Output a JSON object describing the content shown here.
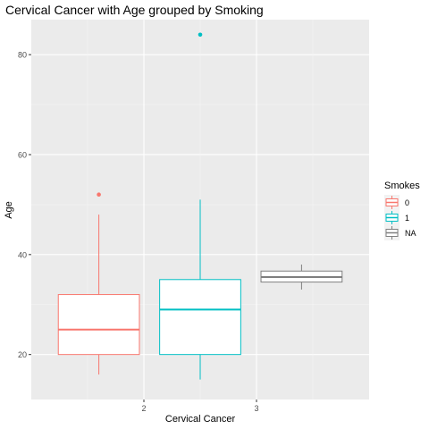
{
  "chart_data": {
    "type": "boxplot",
    "title": "Cervical Cancer with Age grouped by Smoking",
    "xlabel": "Cervical Cancer",
    "ylabel": "Age",
    "x_ticks": [
      "2",
      "3"
    ],
    "y_ticks": [
      20,
      40,
      60,
      80
    ],
    "ylim": [
      11,
      87
    ],
    "grid": true,
    "legend": {
      "title": "Smokes",
      "placement": "right",
      "entries": [
        {
          "label": "0",
          "color": "#F8766D"
        },
        {
          "label": "1",
          "color": "#00BFC4"
        },
        {
          "label": "NA",
          "color": "#7F7F7F"
        }
      ]
    },
    "boxes": [
      {
        "series": "0",
        "x_center": 1.6,
        "q1": 20,
        "median": 25,
        "q3": 32,
        "whisker_low": 16,
        "whisker_high": 48,
        "outliers": [
          52
        ],
        "color": "#F8766D"
      },
      {
        "series": "1",
        "x_center": 2.5,
        "q1": 20,
        "median": 29,
        "q3": 35,
        "whisker_low": 15,
        "whisker_high": 51,
        "outliers": [
          84
        ],
        "color": "#00BFC4"
      },
      {
        "series": "NA",
        "x_center": 3.4,
        "q1": 34.5,
        "median": 35.5,
        "q3": 36.7,
        "whisker_low": 33,
        "whisker_high": 38,
        "outliers": [],
        "color": "#7F7F7F"
      }
    ],
    "box_width": 0.72,
    "xlim": [
      1.0,
      4.0
    ]
  }
}
